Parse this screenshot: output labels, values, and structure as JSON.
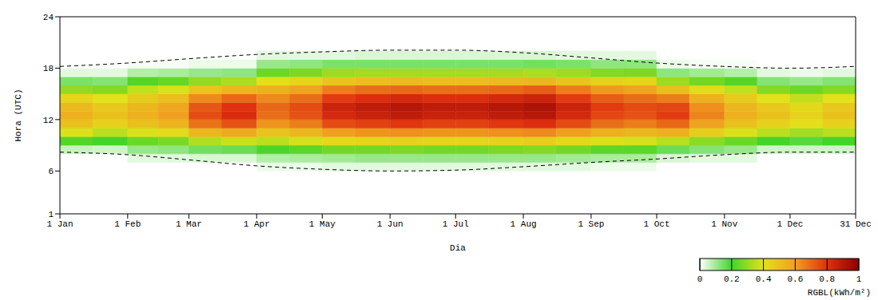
{
  "chart_data": {
    "type": "heatmap",
    "xlabel": "Dia",
    "ylabel": "Hora (UTC)",
    "xlim": [
      1,
      365
    ],
    "ylim": [
      1,
      24
    ],
    "xticks": [
      {
        "value": 1,
        "label": "1 Jan"
      },
      {
        "value": 32,
        "label": "1 Feb"
      },
      {
        "value": 60,
        "label": "1 Mar"
      },
      {
        "value": 91,
        "label": "1 Apr"
      },
      {
        "value": 121,
        "label": "1 May"
      },
      {
        "value": 152,
        "label": "1 Jun"
      },
      {
        "value": 182,
        "label": "1 Jul"
      },
      {
        "value": 213,
        "label": "1 Aug"
      },
      {
        "value": 244,
        "label": "1 Sep"
      },
      {
        "value": 274,
        "label": "1 Oct"
      },
      {
        "value": 305,
        "label": "1 Nov"
      },
      {
        "value": 335,
        "label": "1 Dec"
      },
      {
        "value": 365,
        "label": "31 Dec"
      }
    ],
    "yticks": [
      1,
      6,
      12,
      18,
      24
    ],
    "x_bins": [
      1,
      16,
      32,
      46,
      60,
      75,
      91,
      106,
      121,
      136,
      152,
      167,
      182,
      197,
      213,
      228,
      244,
      259,
      274,
      289,
      305,
      320,
      335,
      350,
      365
    ],
    "y_bins": [
      6,
      7,
      8,
      9,
      10,
      11,
      12,
      13,
      14,
      15,
      16,
      17,
      18,
      19,
      20
    ],
    "z": [
      [
        0,
        0,
        0,
        0,
        0,
        0,
        0.02,
        0.02,
        0.03,
        0.03,
        0.03,
        0.03,
        0.03,
        0.03,
        0.03,
        0.03,
        0.02,
        0.02,
        0,
        0,
        0,
        0,
        0,
        0
      ],
      [
        0,
        0,
        0.03,
        0.03,
        0.04,
        0.04,
        0.08,
        0.09,
        0.1,
        0.11,
        0.11,
        0.11,
        0.11,
        0.11,
        0.11,
        0.1,
        0.09,
        0.09,
        0.04,
        0.03,
        0.03,
        0,
        0,
        0
      ],
      [
        0.06,
        0.05,
        0.11,
        0.12,
        0.15,
        0.16,
        0.21,
        0.23,
        0.26,
        0.26,
        0.27,
        0.26,
        0.26,
        0.27,
        0.28,
        0.26,
        0.23,
        0.23,
        0.16,
        0.13,
        0.11,
        0.05,
        0.05,
        0.05
      ],
      [
        0.22,
        0.2,
        0.25,
        0.27,
        0.34,
        0.37,
        0.35,
        0.38,
        0.43,
        0.44,
        0.45,
        0.44,
        0.44,
        0.45,
        0.46,
        0.43,
        0.39,
        0.38,
        0.35,
        0.29,
        0.25,
        0.2,
        0.18,
        0.2
      ],
      [
        0.39,
        0.35,
        0.39,
        0.42,
        0.53,
        0.57,
        0.49,
        0.53,
        0.6,
        0.62,
        0.63,
        0.62,
        0.62,
        0.63,
        0.64,
        0.6,
        0.55,
        0.53,
        0.55,
        0.46,
        0.39,
        0.35,
        0.32,
        0.35
      ],
      [
        0.5,
        0.45,
        0.5,
        0.54,
        0.68,
        0.74,
        0.62,
        0.66,
        0.75,
        0.77,
        0.79,
        0.77,
        0.77,
        0.79,
        0.81,
        0.75,
        0.69,
        0.66,
        0.7,
        0.59,
        0.5,
        0.45,
        0.41,
        0.45
      ],
      [
        0.55,
        0.5,
        0.55,
        0.6,
        0.75,
        0.82,
        0.69,
        0.74,
        0.83,
        0.86,
        0.88,
        0.86,
        0.86,
        0.88,
        0.9,
        0.83,
        0.76,
        0.74,
        0.78,
        0.65,
        0.55,
        0.5,
        0.45,
        0.5
      ],
      [
        0.52,
        0.48,
        0.53,
        0.58,
        0.73,
        0.8,
        0.7,
        0.75,
        0.85,
        0.88,
        0.9,
        0.88,
        0.88,
        0.9,
        0.92,
        0.85,
        0.78,
        0.75,
        0.76,
        0.63,
        0.53,
        0.48,
        0.43,
        0.48
      ],
      [
        0.44,
        0.4,
        0.47,
        0.51,
        0.64,
        0.7,
        0.64,
        0.69,
        0.78,
        0.81,
        0.83,
        0.81,
        0.81,
        0.83,
        0.85,
        0.78,
        0.72,
        0.69,
        0.66,
        0.55,
        0.47,
        0.4,
        0.36,
        0.4
      ],
      [
        0.3,
        0.28,
        0.36,
        0.39,
        0.49,
        0.53,
        0.55,
        0.59,
        0.66,
        0.69,
        0.7,
        0.69,
        0.69,
        0.7,
        0.72,
        0.66,
        0.61,
        0.59,
        0.51,
        0.42,
        0.36,
        0.28,
        0.25,
        0.28
      ],
      [
        0.14,
        0.13,
        0.22,
        0.24,
        0.3,
        0.33,
        0.41,
        0.44,
        0.49,
        0.51,
        0.52,
        0.51,
        0.51,
        0.52,
        0.53,
        0.49,
        0.45,
        0.44,
        0.31,
        0.26,
        0.22,
        0.13,
        0.11,
        0.13
      ],
      [
        0.03,
        0.03,
        0.08,
        0.09,
        0.11,
        0.12,
        0.25,
        0.27,
        0.31,
        0.32,
        0.32,
        0.32,
        0.32,
        0.32,
        0.33,
        0.31,
        0.28,
        0.27,
        0.12,
        0.1,
        0.08,
        0.03,
        0.02,
        0.03
      ],
      [
        0,
        0,
        0.01,
        0.01,
        0.02,
        0.02,
        0.11,
        0.12,
        0.14,
        0.14,
        0.14,
        0.14,
        0.14,
        0.14,
        0.15,
        0.14,
        0.12,
        0.12,
        0.02,
        0.01,
        0.01,
        0,
        0,
        0
      ],
      [
        0,
        0,
        0,
        0,
        0,
        0,
        0.03,
        0.03,
        0.03,
        0.04,
        0.04,
        0.04,
        0.04,
        0.04,
        0.04,
        0.03,
        0.03,
        0.03,
        0,
        0,
        0,
        0,
        0,
        0
      ]
    ],
    "daylight": {
      "x": [
        1,
        32,
        60,
        91,
        121,
        152,
        182,
        213,
        244,
        274,
        305,
        335,
        365
      ],
      "sunrise": [
        8.2,
        7.9,
        7.3,
        6.6,
        6.2,
        6.0,
        6.1,
        6.5,
        7.0,
        7.4,
        7.9,
        8.2,
        8.2
      ],
      "sunset": [
        18.2,
        18.6,
        19.1,
        19.6,
        19.9,
        20.1,
        20.1,
        19.8,
        19.2,
        18.6,
        18.2,
        18.0,
        18.2
      ],
      "line_style": "dashed",
      "color": "#000000"
    },
    "colorbar": {
      "label": "RGBL(kWh/m²)",
      "range": [
        0,
        1
      ],
      "ticks": [
        0,
        0.2,
        0.4,
        0.6,
        0.8,
        1
      ],
      "colors": [
        "#ffffff",
        "#44d42a",
        "#e2e21a",
        "#f0a020",
        "#e03010",
        "#8b0000"
      ]
    }
  }
}
